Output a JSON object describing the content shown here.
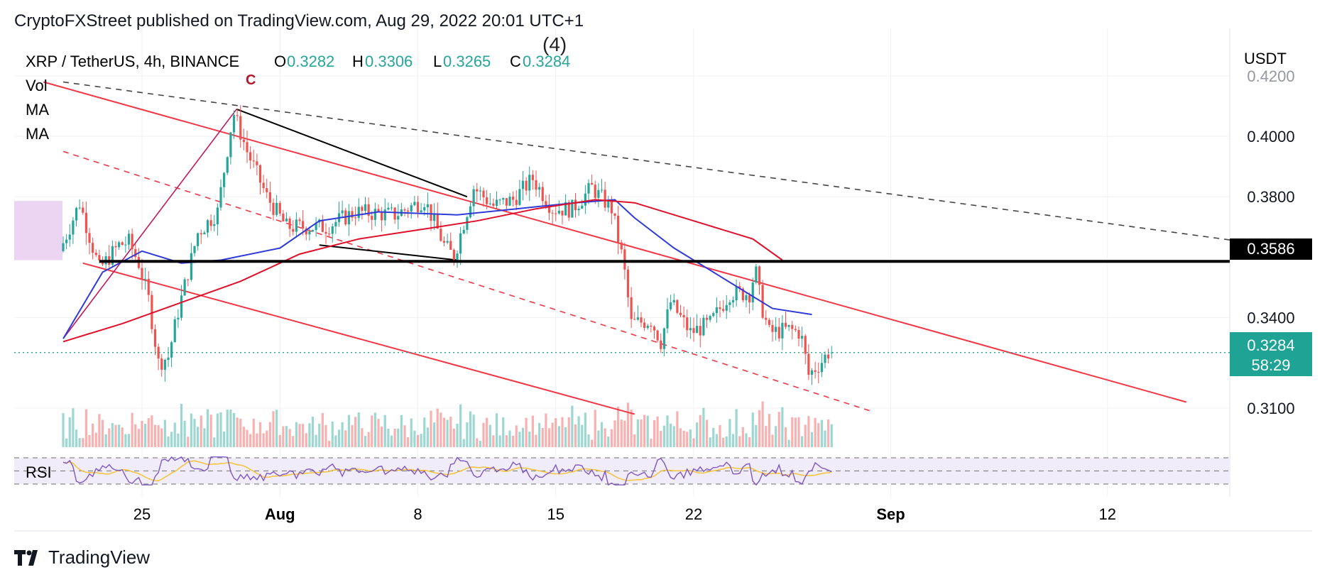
{
  "header": {
    "publisher_line": "CryptoFXStreet published on TradingView.com, Aug 29, 2022 20:01 UTC+1"
  },
  "legend": {
    "symbol": "XRP / TetherUS, 4h, BINANCE",
    "o_label": "O",
    "o_value": "0.3282",
    "h_label": "H",
    "h_value": "0.3306",
    "l_label": "L",
    "l_value": "0.3265",
    "c_label": "C",
    "c_value": "0.3284",
    "indicators": [
      "Vol",
      "MA",
      "MA"
    ],
    "rsi_label": "RSI"
  },
  "annotations": {
    "wave_c": "C",
    "wave_4": "(4)"
  },
  "price_axis": {
    "currency": "USDT",
    "ticks": [
      "0.4200",
      "0.4000",
      "0.3800",
      "0.3400",
      "0.3100"
    ],
    "support_label": "0.3586",
    "last_price_label": "0.3284",
    "countdown_label": "58:29"
  },
  "time_axis": {
    "ticks": [
      "25",
      "Aug",
      "8",
      "15",
      "22",
      "Sep",
      "12"
    ]
  },
  "footer": {
    "brand": "TradingView"
  },
  "colors": {
    "up": "#26a69a",
    "down": "#ef5350",
    "trend": "#f23645",
    "ma_fast": "#2f3bd8",
    "ma_slow": "#e0102a",
    "support": "#000000",
    "rsi_line": "#7e57c2",
    "rsi_ma": "#f4c542",
    "rsi_band": "#f1ecfa",
    "box": "#e6c7ef"
  },
  "chart_data": {
    "type": "candlestick",
    "symbol": "XRP / TetherUS",
    "interval": "4h",
    "exchange": "BINANCE",
    "last": {
      "open": 0.3282,
      "high": 0.3306,
      "low": 0.3265,
      "close": 0.3284
    },
    "support_level": 0.3586,
    "ylim": [
      0.297,
      0.421
    ],
    "xlim": [
      "Jul 21",
      "Sep 19"
    ],
    "waypoints": [
      [
        "Jul 21",
        0.362
      ],
      [
        "Jul 22",
        0.378
      ],
      [
        "Jul 23",
        0.356
      ],
      [
        "Jul 24",
        0.364
      ],
      [
        "Jul 24.5",
        0.365
      ],
      [
        "Jul 25",
        0.358
      ],
      [
        "Jul 25.5",
        0.346
      ],
      [
        "Jul 26",
        0.325
      ],
      [
        "Jul 26.5",
        0.327
      ],
      [
        "Jul 27",
        0.342
      ],
      [
        "Jul 28",
        0.368
      ],
      [
        "Jul 29",
        0.375
      ],
      [
        "Jul 29.8",
        0.408
      ],
      [
        "Jul 30.5",
        0.395
      ],
      [
        "Jul 31.5",
        0.38
      ],
      [
        "Aug 1.5",
        0.37
      ],
      [
        "Aug 2.5",
        0.37
      ],
      [
        "Aug 3.5",
        0.37
      ],
      [
        "Aug 5",
        0.375
      ],
      [
        "Aug 7",
        0.374
      ],
      [
        "Aug 8.5",
        0.379
      ],
      [
        "Aug 9.5",
        0.364
      ],
      [
        "Aug 10",
        0.36
      ],
      [
        "Aug 11",
        0.383
      ],
      [
        "Aug 12",
        0.377
      ],
      [
        "Aug 13",
        0.379
      ],
      [
        "Aug 14",
        0.386
      ],
      [
        "Aug 15",
        0.376
      ],
      [
        "Aug 16",
        0.376
      ],
      [
        "Aug 17",
        0.383
      ],
      [
        "Aug 18",
        0.376
      ],
      [
        "Aug 18.6",
        0.358
      ],
      [
        "Aug 19",
        0.338
      ],
      [
        "Aug 20",
        0.339
      ],
      [
        "Aug 20.5",
        0.332
      ],
      [
        "Aug 21",
        0.345
      ],
      [
        "Aug 22",
        0.335
      ],
      [
        "Aug 23",
        0.338
      ],
      [
        "Aug 24",
        0.348
      ],
      [
        "Aug 25",
        0.348
      ],
      [
        "Aug 25.3",
        0.356
      ],
      [
        "Aug 25.6",
        0.344
      ],
      [
        "Aug 26",
        0.335
      ],
      [
        "Aug 27",
        0.336
      ],
      [
        "Aug 27.6",
        0.335
      ],
      [
        "Aug 28",
        0.321
      ],
      [
        "Aug 28.6",
        0.325
      ],
      [
        "Aug 29",
        0.3284
      ]
    ],
    "ma_fast": [
      [
        "Jul 21",
        0.333
      ],
      [
        "Jul 23",
        0.355
      ],
      [
        "Jul 25",
        0.362
      ],
      [
        "Jul 27",
        0.358
      ],
      [
        "Jul 29",
        0.359
      ],
      [
        "Aug 1",
        0.363
      ],
      [
        "Aug 3",
        0.372
      ],
      [
        "Aug 6",
        0.375
      ],
      [
        "Aug 10",
        0.374
      ],
      [
        "Aug 13",
        0.376
      ],
      [
        "Aug 16",
        0.378
      ],
      [
        "Aug 18",
        0.379
      ],
      [
        "Aug 19",
        0.373
      ],
      [
        "Aug 21",
        0.363
      ],
      [
        "Aug 23",
        0.355
      ],
      [
        "Aug 24.5",
        0.349
      ],
      [
        "Aug 26",
        0.343
      ],
      [
        "Aug 28",
        0.341
      ]
    ],
    "ma_slow": [
      [
        "Jul 21",
        0.332
      ],
      [
        "Jul 24",
        0.338
      ],
      [
        "Jul 27",
        0.345
      ],
      [
        "Jul 30",
        0.352
      ],
      [
        "Aug 2",
        0.361
      ],
      [
        "Aug 5",
        0.366
      ],
      [
        "Aug 8",
        0.369
      ],
      [
        "Aug 11",
        0.372
      ],
      [
        "Aug 14",
        0.376
      ],
      [
        "Aug 17",
        0.379
      ],
      [
        "Aug 19",
        0.378
      ],
      [
        "Aug 22",
        0.372
      ],
      [
        "Aug 25",
        0.366
      ],
      [
        "Aug 26.5",
        0.359
      ]
    ],
    "trendlines": [
      {
        "name": "channel-upper",
        "from": [
          "Jul 20",
          0.418
        ],
        "to": [
          "Sep 16",
          0.312
        ]
      },
      {
        "name": "channel-lower",
        "from": [
          "Jul 22",
          0.358
        ],
        "to": [
          "Aug 19",
          0.308
        ]
      },
      {
        "name": "channel-mid-dashed",
        "from": [
          "Jul 21",
          0.395
        ],
        "to": [
          "Aug 31",
          0.309
        ]
      },
      {
        "name": "upper-dashed",
        "from": [
          "Jul 21",
          0.418
        ],
        "to": [
          "Sep 19",
          0.365
        ]
      },
      {
        "name": "impulse-up",
        "from": [
          "Jul 21",
          0.333
        ],
        "to": [
          "Jul 29.8",
          0.409
        ]
      },
      {
        "name": "triangle-top",
        "from": [
          "Jul 29.8",
          0.409
        ],
        "to": [
          "Aug 10.5",
          0.38
        ]
      },
      {
        "name": "triangle-bottom",
        "from": [
          "Aug 3",
          0.364
        ],
        "to": [
          "Aug 10",
          0.359
        ]
      }
    ],
    "rsi_band": [
      30,
      70
    ],
    "current_price": 0.3284
  }
}
